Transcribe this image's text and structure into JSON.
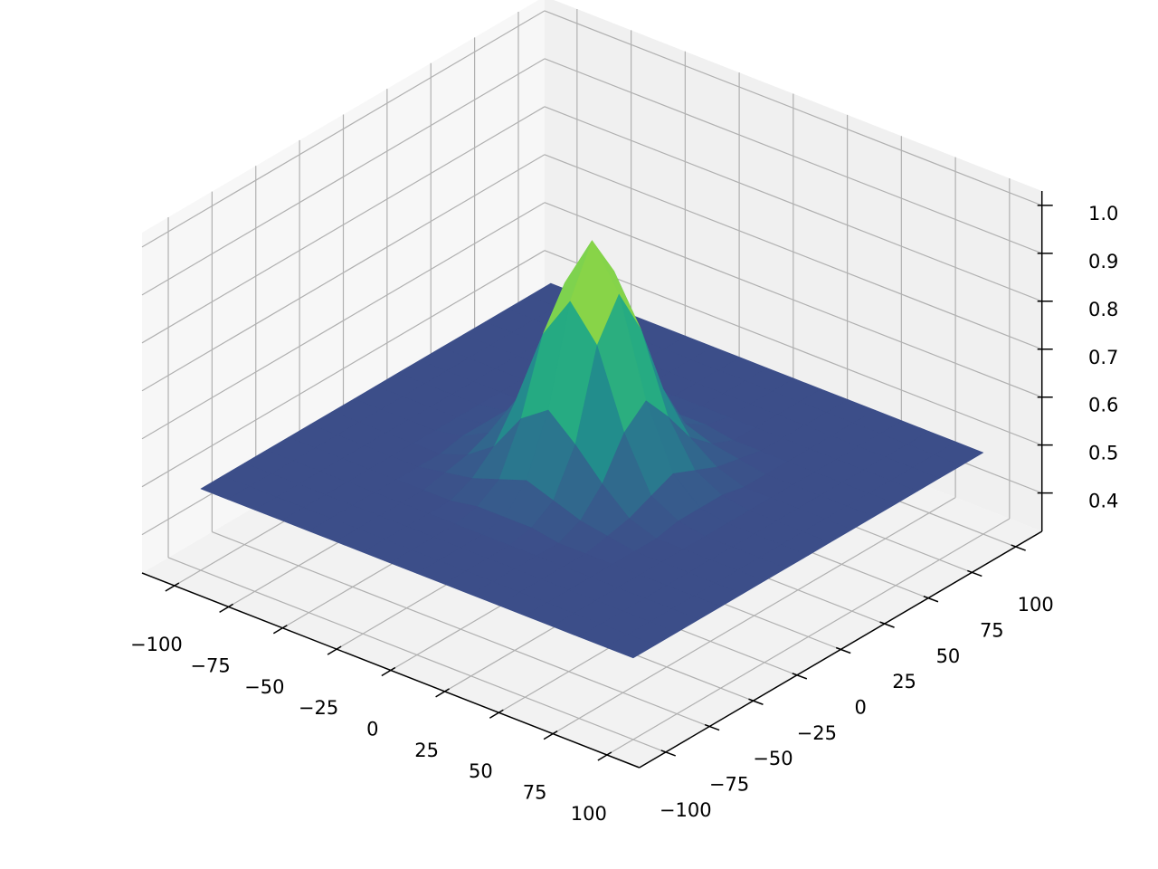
{
  "chart_data": {
    "type": "surface",
    "colormap": "viridis",
    "color_range": [
      0.33,
      1.0
    ],
    "grid": true,
    "x": [
      -100,
      -87.5,
      -75,
      -62.5,
      -50,
      -37.5,
      -25,
      -12.5,
      0,
      12.5,
      25,
      37.5,
      50,
      62.5,
      75,
      87.5,
      100
    ],
    "y": [
      -100,
      -87.5,
      -75,
      -62.5,
      -50,
      -37.5,
      -25,
      -12.5,
      0,
      12.5,
      25,
      37.5,
      50,
      62.5,
      75,
      87.5,
      100
    ],
    "z": [
      [
        0.49,
        0.49,
        0.49,
        0.49,
        0.49,
        0.49,
        0.49,
        0.49,
        0.49,
        0.49,
        0.49,
        0.49,
        0.49,
        0.49,
        0.49,
        0.49,
        0.49
      ],
      [
        0.49,
        0.49,
        0.49,
        0.49,
        0.49,
        0.49,
        0.49,
        0.49,
        0.49,
        0.49,
        0.49,
        0.49,
        0.49,
        0.49,
        0.49,
        0.49,
        0.49
      ],
      [
        0.49,
        0.49,
        0.49,
        0.49,
        0.49,
        0.49,
        0.49,
        0.49,
        0.49,
        0.49,
        0.49,
        0.49,
        0.49,
        0.49,
        0.49,
        0.49,
        0.49
      ],
      [
        0.49,
        0.49,
        0.49,
        0.49,
        0.49,
        0.49,
        0.49,
        0.49,
        0.49,
        0.49,
        0.49,
        0.49,
        0.49,
        0.49,
        0.49,
        0.49,
        0.49
      ],
      [
        0.49,
        0.49,
        0.49,
        0.49,
        0.49,
        0.49,
        0.49,
        0.5,
        0.5,
        0.5,
        0.49,
        0.49,
        0.49,
        0.49,
        0.49,
        0.49,
        0.49
      ],
      [
        0.49,
        0.49,
        0.49,
        0.49,
        0.49,
        0.5,
        0.51,
        0.53,
        0.55,
        0.53,
        0.51,
        0.5,
        0.49,
        0.49,
        0.49,
        0.49,
        0.49
      ],
      [
        0.49,
        0.49,
        0.49,
        0.49,
        0.49,
        0.51,
        0.55,
        0.63,
        0.67,
        0.62,
        0.56,
        0.51,
        0.49,
        0.49,
        0.49,
        0.49,
        0.49
      ],
      [
        0.49,
        0.49,
        0.49,
        0.49,
        0.5,
        0.53,
        0.62,
        0.78,
        0.87,
        0.8,
        0.64,
        0.53,
        0.5,
        0.49,
        0.49,
        0.49,
        0.49
      ],
      [
        0.49,
        0.49,
        0.49,
        0.49,
        0.5,
        0.54,
        0.66,
        0.86,
        0.97,
        0.88,
        0.68,
        0.55,
        0.5,
        0.49,
        0.49,
        0.49,
        0.49
      ],
      [
        0.49,
        0.49,
        0.49,
        0.49,
        0.5,
        0.53,
        0.63,
        0.79,
        0.88,
        0.78,
        0.62,
        0.53,
        0.5,
        0.49,
        0.49,
        0.49,
        0.49
      ],
      [
        0.49,
        0.49,
        0.49,
        0.49,
        0.49,
        0.51,
        0.56,
        0.62,
        0.68,
        0.63,
        0.55,
        0.51,
        0.49,
        0.49,
        0.49,
        0.49,
        0.49
      ],
      [
        0.49,
        0.49,
        0.49,
        0.49,
        0.49,
        0.5,
        0.51,
        0.53,
        0.54,
        0.53,
        0.51,
        0.5,
        0.49,
        0.49,
        0.49,
        0.49,
        0.49
      ],
      [
        0.49,
        0.49,
        0.49,
        0.49,
        0.49,
        0.49,
        0.49,
        0.5,
        0.5,
        0.5,
        0.49,
        0.49,
        0.49,
        0.49,
        0.49,
        0.49,
        0.49
      ],
      [
        0.49,
        0.49,
        0.49,
        0.49,
        0.49,
        0.49,
        0.49,
        0.49,
        0.49,
        0.49,
        0.49,
        0.49,
        0.49,
        0.49,
        0.49,
        0.49,
        0.49
      ],
      [
        0.49,
        0.49,
        0.49,
        0.49,
        0.49,
        0.49,
        0.49,
        0.49,
        0.49,
        0.49,
        0.49,
        0.49,
        0.49,
        0.49,
        0.49,
        0.49,
        0.49
      ],
      [
        0.49,
        0.49,
        0.49,
        0.49,
        0.49,
        0.49,
        0.49,
        0.49,
        0.49,
        0.49,
        0.49,
        0.49,
        0.49,
        0.49,
        0.49,
        0.49,
        0.49
      ],
      [
        0.49,
        0.49,
        0.49,
        0.49,
        0.49,
        0.49,
        0.49,
        0.49,
        0.49,
        0.49,
        0.49,
        0.49,
        0.49,
        0.49,
        0.49,
        0.49,
        0.49
      ]
    ],
    "xlim": [
      -115,
      115
    ],
    "ylim": [
      -115,
      115
    ],
    "zlim": [
      0.32,
      1.03
    ],
    "xticks": [
      {
        "value": -100,
        "label": "−100"
      },
      {
        "value": -75,
        "label": "−75"
      },
      {
        "value": -50,
        "label": "−50"
      },
      {
        "value": -25,
        "label": "−25"
      },
      0,
      25,
      50,
      75,
      100
    ],
    "yticks": [
      {
        "value": -100,
        "label": "−100"
      },
      {
        "value": -75,
        "label": "−75"
      },
      {
        "value": -50,
        "label": "−50"
      },
      {
        "value": -25,
        "label": "−25"
      },
      0,
      25,
      50,
      75,
      100
    ],
    "zticks": [
      0.4,
      0.5,
      0.6,
      0.7,
      0.8,
      0.9,
      {
        "value": 1,
        "label": "1.0"
      }
    ]
  }
}
